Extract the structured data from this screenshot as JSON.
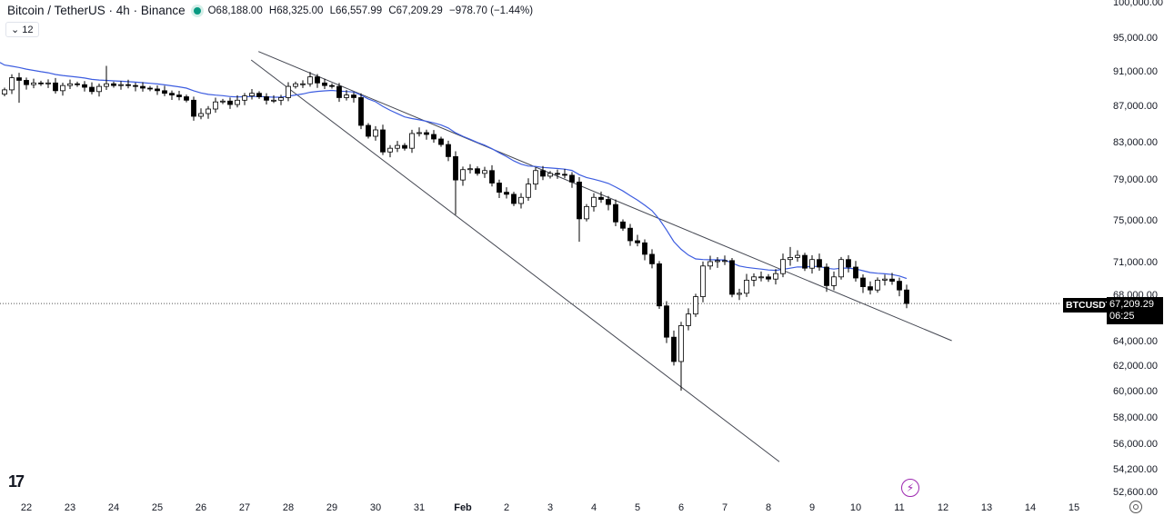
{
  "header": {
    "symbol_title": "Bitcoin / TetherUS · 4h · Binance",
    "open": "O68,188.00",
    "high": "H68,325.00",
    "low": "L66,557.99",
    "close": "C67,209.29",
    "change": "−978.70 (−1.44%)",
    "indicator_toggle": "⌄ 12"
  },
  "price_tag": {
    "symbol": "BTCUSDT",
    "price": "67,209.29",
    "countdown": "06:25"
  },
  "colors": {
    "ma": "#3d5de0",
    "bull_body": "#ffffff",
    "bear_body": "#000000",
    "trendline": "#434651",
    "live_dot": "#089981",
    "alert": "#9c27b0"
  },
  "icons": {
    "logo": "tradingview-logo-icon",
    "alert": "lightning-icon",
    "settings": "settings-icon"
  },
  "chart_data": {
    "type": "candlestick",
    "timeframe": "4h",
    "price_ticks": [
      {
        "value": 100000,
        "label": "100,000.00"
      },
      {
        "value": 95000,
        "label": "95,000.00"
      },
      {
        "value": 91000,
        "label": "91,000.00"
      },
      {
        "value": 87000,
        "label": "87,000.00"
      },
      {
        "value": 83000,
        "label": "83,000.00"
      },
      {
        "value": 79000,
        "label": "79,000.00"
      },
      {
        "value": 75000,
        "label": "75,000.00"
      },
      {
        "value": 71000,
        "label": "71,000.00"
      },
      {
        "value": 68000,
        "label": "68,000.00"
      },
      {
        "value": 64000,
        "label": "64,000.00"
      },
      {
        "value": 62000,
        "label": "62,000.00"
      },
      {
        "value": 60000,
        "label": "60,000.00"
      },
      {
        "value": 58000,
        "label": "58,000.00"
      },
      {
        "value": 56000,
        "label": "56,000.00"
      },
      {
        "value": 54200,
        "label": "54,200.00"
      },
      {
        "value": 52600,
        "label": "52,600.00"
      }
    ],
    "date_ticks": [
      "22",
      "23",
      "24",
      "25",
      "26",
      "27",
      "28",
      "29",
      "30",
      "31",
      "Feb",
      "2",
      "3",
      "4",
      "5",
      "6",
      "7",
      "8",
      "9",
      "10",
      "11",
      "12",
      "13",
      "14",
      "15"
    ],
    "last_price": 67209.29,
    "ma_seed": 92000,
    "ma_period": 20,
    "closes": [
      88800,
      90200,
      89900,
      89400,
      89600,
      89500,
      89600,
      88700,
      89300,
      89500,
      89400,
      89100,
      88600,
      89200,
      89500,
      89300,
      89400,
      89300,
      89200,
      89000,
      88900,
      88700,
      88400,
      88200,
      88000,
      87600,
      85800,
      86100,
      86600,
      87400,
      87500,
      87100,
      87600,
      88100,
      88400,
      88000,
      87600,
      87600,
      87900,
      89200,
      89500,
      89500,
      90300,
      89600,
      89300,
      89200,
      87900,
      88200,
      87900,
      84800,
      83600,
      84300,
      81900,
      82300,
      82600,
      82300,
      83900,
      84000,
      83800,
      83300,
      82700,
      81400,
      78900,
      80000,
      80100,
      79600,
      79900,
      78600,
      77700,
      77500,
      76600,
      77200,
      78500,
      79900,
      79300,
      79600,
      79500,
      79400,
      78700,
      75100,
      76300,
      77200,
      77000,
      76500,
      74800,
      74200,
      73000,
      72800,
      71700,
      70800,
      67000,
      64300,
      62300,
      65300,
      66300,
      67800,
      70600,
      71000,
      71100,
      71100,
      68000,
      68100,
      69300,
      69600,
      69600,
      69400,
      69900,
      71200,
      71400,
      71600,
      70400,
      71200,
      70500,
      68800,
      69600,
      71200,
      70500,
      69500,
      68700,
      68400,
      69300,
      69400,
      69200,
      68400,
      67209.29
    ],
    "first_open": 88300,
    "long_wicks": [
      {
        "index": 2,
        "low": 87300
      },
      {
        "index": 14,
        "high": 91600
      },
      {
        "index": 62,
        "low": 75500
      },
      {
        "index": 79,
        "low": 72900
      },
      {
        "index": 93,
        "low": 60000
      },
      {
        "index": 108,
        "high": 72400
      }
    ],
    "trendlines": [
      {
        "name": "upper",
        "from": {
          "index": 34.9,
          "price": 93300
        },
        "to": {
          "index": 130.2,
          "price": 64000
        }
      },
      {
        "name": "lower",
        "from": {
          "index": 33.9,
          "price": 92300
        },
        "to": {
          "index": 106.5,
          "price": 54700
        }
      }
    ]
  }
}
